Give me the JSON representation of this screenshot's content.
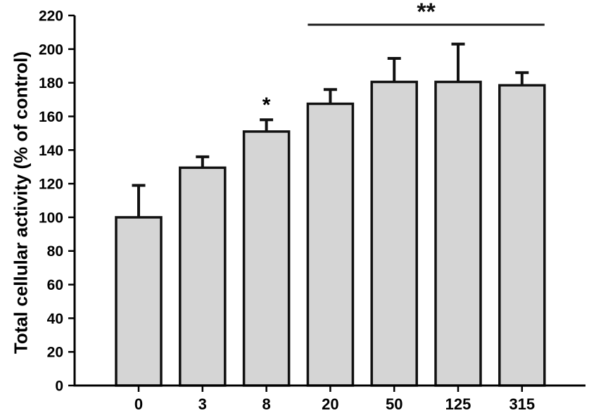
{
  "figure": {
    "background": "#ffffff"
  },
  "chart_data": {
    "type": "bar",
    "title": "",
    "xlabel": "",
    "ylabel": "Total cellular activity (% of control)",
    "categories": [
      "0",
      "3",
      "8",
      "20",
      "50",
      "125",
      "315"
    ],
    "values": [
      100,
      129.5,
      151,
      167.5,
      180.5,
      180.5,
      178.5
    ],
    "errors": [
      19,
      6.5,
      7,
      8.5,
      14,
      22.5,
      7.5
    ],
    "error_direction": "upper",
    "ylim": [
      0,
      220
    ],
    "ytick_step": 20,
    "grid": false,
    "legend": "none",
    "bar_fill": "#d5d5d5",
    "bar_stroke": "#111111",
    "axis_color": "#000000",
    "significance_line_color": "#222222",
    "annotations": [
      {
        "kind": "star",
        "label": "*",
        "bar": 2
      },
      {
        "kind": "significance-bracket",
        "label": "**",
        "from_bar": 3,
        "to_bar": 6,
        "y_value": 214.5
      }
    ]
  }
}
